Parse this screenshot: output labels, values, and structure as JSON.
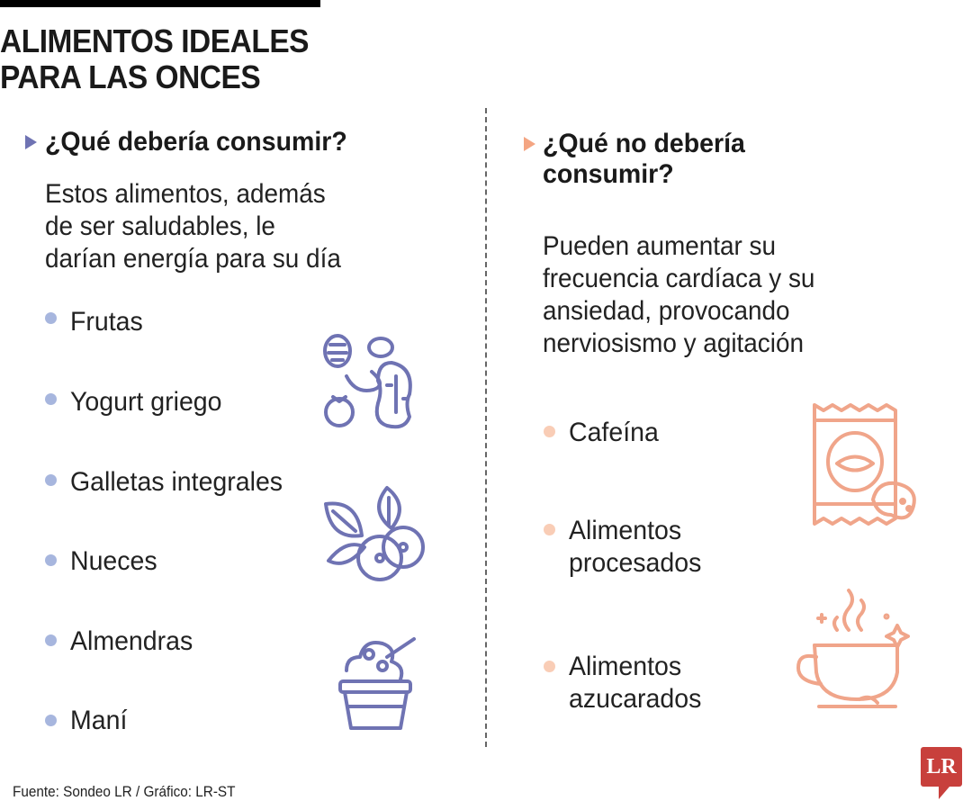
{
  "title": [
    "ALIMENTOS IDEALES",
    "PARA LAS ONCES"
  ],
  "left": {
    "heading": "¿Qué debería consumir?",
    "intro": [
      "Estos alimentos, además",
      "de ser saludables, le",
      "darían energía para su día"
    ],
    "items": [
      "Frutas",
      "Yogurt griego",
      "Galletas integrales",
      "Nueces",
      "Almendras",
      "Maní"
    ],
    "icons": [
      "nuts-icon",
      "berries-icon",
      "yogurt-cup-icon"
    ]
  },
  "right": {
    "heading": [
      "¿Qué no debería",
      "consumir?"
    ],
    "intro": [
      "Pueden aumentar su",
      "frecuencia cardíaca y su",
      "ansiedad, provocando",
      "nerviosismo y agitación"
    ],
    "items": [
      [
        "Cafeína"
      ],
      [
        "Alimentos",
        "procesados"
      ],
      [
        "Alimentos",
        "azucarados"
      ]
    ],
    "icons": [
      "chips-bag-icon",
      "coffee-cup-icon"
    ]
  },
  "source": "Fuente: Sondeo LR / Gráfico: LR-ST",
  "logo": "LR",
  "colors": {
    "accent_left": "#6f73b3",
    "bullet_left": "#a7b6de",
    "accent_right": "#f4a582",
    "bullet_right": "#f9cdb6",
    "logo": "#c8403c"
  }
}
